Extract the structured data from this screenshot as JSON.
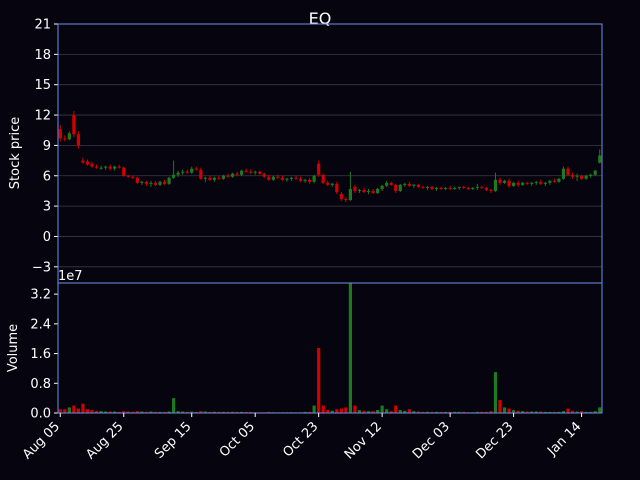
{
  "chart_data": {
    "type": "candlestick",
    "title": "EQ",
    "price_panel": {
      "ylabel": "Stock price",
      "ylim": [
        -4.6,
        21
      ],
      "yticks": [
        -3,
        0,
        3,
        6,
        9,
        12,
        15,
        18,
        21
      ],
      "grid": true
    },
    "volume_panel": {
      "ylabel": "Volume",
      "offset_label": "1e7",
      "ylim": [
        0,
        3.5
      ],
      "yticks": [
        "0.0",
        "0.8",
        "1.6",
        "2.4",
        "3.2"
      ],
      "unit_multiplier": 10000000
    },
    "xticks": [
      {
        "label": "Aug 05",
        "index": 0
      },
      {
        "label": "Aug 25",
        "index": 14
      },
      {
        "label": "Sep 15",
        "index": 29
      },
      {
        "label": "Oct 05",
        "index": 43
      },
      {
        "label": "Oct 23",
        "index": 57
      },
      {
        "label": "Nov 12",
        "index": 71
      },
      {
        "label": "Dec 03",
        "index": 86
      },
      {
        "label": "Dec 23",
        "index": 100
      },
      {
        "label": "Jan 14",
        "index": 115
      }
    ],
    "colors": {
      "up": "#1f7a1f",
      "down": "#d40000",
      "frame": "#6f8fe8",
      "grid": "#3a3a4a",
      "background": "#06040e"
    },
    "candles": [
      [
        10.6,
        11.0,
        9.4,
        9.7,
        0.1
      ],
      [
        9.7,
        10.0,
        9.4,
        9.6,
        0.1
      ],
      [
        9.6,
        10.4,
        9.5,
        10.2,
        0.15
      ],
      [
        12.0,
        12.4,
        9.8,
        10.1,
        0.2
      ],
      [
        10.1,
        10.4,
        8.7,
        9.0,
        0.12
      ],
      [
        7.5,
        7.8,
        7.2,
        7.3,
        0.25
      ],
      [
        7.4,
        7.6,
        7.0,
        7.1,
        0.1
      ],
      [
        7.2,
        7.4,
        6.8,
        6.9,
        0.08
      ],
      [
        6.9,
        7.1,
        6.7,
        6.8,
        0.06
      ],
      [
        6.8,
        7.0,
        6.6,
        6.8,
        0.05
      ],
      [
        6.8,
        7.0,
        6.6,
        6.9,
        0.04
      ],
      [
        6.9,
        7.1,
        6.5,
        6.7,
        0.04
      ],
      [
        6.7,
        7.0,
        6.5,
        6.9,
        0.04
      ],
      [
        6.9,
        7.1,
        6.7,
        6.8,
        0.03
      ],
      [
        6.8,
        6.9,
        5.9,
        6.0,
        0.05
      ],
      [
        6.0,
        6.1,
        5.8,
        5.9,
        0.04
      ],
      [
        5.9,
        6.0,
        5.7,
        5.8,
        0.03
      ],
      [
        5.8,
        5.9,
        5.2,
        5.3,
        0.05
      ],
      [
        5.3,
        5.5,
        5.1,
        5.4,
        0.04
      ],
      [
        5.4,
        5.5,
        5.0,
        5.2,
        0.03
      ],
      [
        5.2,
        5.5,
        4.9,
        5.3,
        0.04
      ],
      [
        5.3,
        5.5,
        5.0,
        5.1,
        0.03
      ],
      [
        5.1,
        5.5,
        5.0,
        5.4,
        0.03
      ],
      [
        5.4,
        5.6,
        5.1,
        5.2,
        0.03
      ],
      [
        5.2,
        5.9,
        5.1,
        5.8,
        0.04
      ],
      [
        5.8,
        7.5,
        5.7,
        6.1,
        0.4
      ],
      [
        6.1,
        6.5,
        5.9,
        6.3,
        0.05
      ],
      [
        6.3,
        6.6,
        6.1,
        6.4,
        0.04
      ],
      [
        6.4,
        6.6,
        6.2,
        6.3,
        0.03
      ],
      [
        6.3,
        6.9,
        6.2,
        6.7,
        0.04
      ],
      [
        6.7,
        6.9,
        6.5,
        6.6,
        0.03
      ],
      [
        6.6,
        6.8,
        5.6,
        5.7,
        0.05
      ],
      [
        5.7,
        5.9,
        5.4,
        5.8,
        0.04
      ],
      [
        5.8,
        6.0,
        5.5,
        5.6,
        0.03
      ],
      [
        5.6,
        5.9,
        5.4,
        5.8,
        0.03
      ],
      [
        5.8,
        6.0,
        5.6,
        5.7,
        0.03
      ],
      [
        5.7,
        6.1,
        5.6,
        6.0,
        0.03
      ],
      [
        6.0,
        6.2,
        5.8,
        5.9,
        0.03
      ],
      [
        5.9,
        6.3,
        5.8,
        6.2,
        0.03
      ],
      [
        6.2,
        6.4,
        6.0,
        6.1,
        0.03
      ],
      [
        6.1,
        6.6,
        6.0,
        6.5,
        0.03
      ],
      [
        6.5,
        6.7,
        6.3,
        6.4,
        0.03
      ],
      [
        6.4,
        6.6,
        6.2,
        6.3,
        0.03
      ],
      [
        6.3,
        6.5,
        6.1,
        6.4,
        0.02
      ],
      [
        6.4,
        6.5,
        6.1,
        6.2,
        0.02
      ],
      [
        6.2,
        6.3,
        5.8,
        5.9,
        0.02
      ],
      [
        5.9,
        6.1,
        5.5,
        5.6,
        0.03
      ],
      [
        5.6,
        6.0,
        5.5,
        5.9,
        0.02
      ],
      [
        5.9,
        6.1,
        5.7,
        5.8,
        0.02
      ],
      [
        5.8,
        6.0,
        5.5,
        5.6,
        0.02
      ],
      [
        5.6,
        5.8,
        5.4,
        5.7,
        0.02
      ],
      [
        5.7,
        5.9,
        5.5,
        5.8,
        0.02
      ],
      [
        5.8,
        6.0,
        5.6,
        5.7,
        0.02
      ],
      [
        5.7,
        5.9,
        5.4,
        5.5,
        0.02
      ],
      [
        5.5,
        5.7,
        5.3,
        5.6,
        0.03
      ],
      [
        5.6,
        5.8,
        5.2,
        5.4,
        0.03
      ],
      [
        5.4,
        6.1,
        5.3,
        6.0,
        0.2
      ],
      [
        7.2,
        7.5,
        5.9,
        6.1,
        1.75
      ],
      [
        6.1,
        6.2,
        5.2,
        5.3,
        0.2
      ],
      [
        5.3,
        5.5,
        5.0,
        5.1,
        0.08
      ],
      [
        5.1,
        5.3,
        4.9,
        5.2,
        0.06
      ],
      [
        5.2,
        5.4,
        4.2,
        4.4,
        0.1
      ],
      [
        4.2,
        4.4,
        3.5,
        3.7,
        0.12
      ],
      [
        3.7,
        3.9,
        3.4,
        3.6,
        0.15
      ],
      [
        3.6,
        6.4,
        3.5,
        4.7,
        3.6
      ],
      [
        4.9,
        5.1,
        4.3,
        4.5,
        0.2
      ],
      [
        4.5,
        4.7,
        4.3,
        4.6,
        0.08
      ],
      [
        4.6,
        4.8,
        4.3,
        4.4,
        0.06
      ],
      [
        4.4,
        4.7,
        4.2,
        4.5,
        0.05
      ],
      [
        4.5,
        4.7,
        4.2,
        4.3,
        0.05
      ],
      [
        4.3,
        4.8,
        4.2,
        4.7,
        0.08
      ],
      [
        4.7,
        5.1,
        4.5,
        5.0,
        0.2
      ],
      [
        5.0,
        5.5,
        4.9,
        5.3,
        0.1
      ],
      [
        5.3,
        5.4,
        5.0,
        5.1,
        0.05
      ],
      [
        5.1,
        5.2,
        4.3,
        4.5,
        0.2
      ],
      [
        4.5,
        5.2,
        4.4,
        5.1,
        0.08
      ],
      [
        5.1,
        5.3,
        4.9,
        5.2,
        0.06
      ],
      [
        5.2,
        5.4,
        4.9,
        5.0,
        0.1
      ],
      [
        5.0,
        5.2,
        4.8,
        5.1,
        0.05
      ],
      [
        5.1,
        5.2,
        4.8,
        4.9,
        0.04
      ],
      [
        4.9,
        5.0,
        4.7,
        4.8,
        0.03
      ],
      [
        4.8,
        5.0,
        4.6,
        4.9,
        0.03
      ],
      [
        4.9,
        5.0,
        4.6,
        4.7,
        0.03
      ],
      [
        4.7,
        4.9,
        4.5,
        4.8,
        0.03
      ],
      [
        4.8,
        4.9,
        4.6,
        4.7,
        0.03
      ],
      [
        4.7,
        4.9,
        4.6,
        4.8,
        0.03
      ],
      [
        4.8,
        5.0,
        4.6,
        4.7,
        0.03
      ],
      [
        4.7,
        4.9,
        4.6,
        4.8,
        0.03
      ],
      [
        4.8,
        4.9,
        4.6,
        4.9,
        0.03
      ],
      [
        4.9,
        5.0,
        4.7,
        4.8,
        0.03
      ],
      [
        4.8,
        4.9,
        4.6,
        4.7,
        0.02
      ],
      [
        4.7,
        4.9,
        4.6,
        4.8,
        0.02
      ],
      [
        4.8,
        5.2,
        4.6,
        4.9,
        0.03
      ],
      [
        4.9,
        5.0,
        4.7,
        4.8,
        0.03
      ],
      [
        4.8,
        4.9,
        4.5,
        4.6,
        0.03
      ],
      [
        4.6,
        4.7,
        4.3,
        4.5,
        0.05
      ],
      [
        4.5,
        6.3,
        4.4,
        5.6,
        1.1
      ],
      [
        5.6,
        5.8,
        5.1,
        5.3,
        0.35
      ],
      [
        5.3,
        5.6,
        5.2,
        5.5,
        0.15
      ],
      [
        5.5,
        5.7,
        4.8,
        5.0,
        0.12
      ],
      [
        5.0,
        5.4,
        4.9,
        5.3,
        0.08
      ],
      [
        5.3,
        5.5,
        4.9,
        5.1,
        0.06
      ],
      [
        5.1,
        5.4,
        5.0,
        5.3,
        0.05
      ],
      [
        5.3,
        5.4,
        5.1,
        5.2,
        0.04
      ],
      [
        5.2,
        5.4,
        5.0,
        5.3,
        0.04
      ],
      [
        5.3,
        5.5,
        5.1,
        5.4,
        0.04
      ],
      [
        5.4,
        5.6,
        5.1,
        5.2,
        0.04
      ],
      [
        5.2,
        5.4,
        5.0,
        5.3,
        0.03
      ],
      [
        5.3,
        5.6,
        5.1,
        5.5,
        0.03
      ],
      [
        5.5,
        5.7,
        5.3,
        5.4,
        0.03
      ],
      [
        5.4,
        5.8,
        5.3,
        5.7,
        0.03
      ],
      [
        5.7,
        6.9,
        5.6,
        6.7,
        0.05
      ],
      [
        6.7,
        6.9,
        6.0,
        6.1,
        0.12
      ],
      [
        6.1,
        6.3,
        5.7,
        5.9,
        0.06
      ],
      [
        5.9,
        6.2,
        5.5,
        6.0,
        0.04
      ],
      [
        6.0,
        6.1,
        5.6,
        5.7,
        0.05
      ],
      [
        5.7,
        6.1,
        5.6,
        6.0,
        0.03
      ],
      [
        6.0,
        6.2,
        5.8,
        6.1,
        0.03
      ],
      [
        6.1,
        6.6,
        6.0,
        6.5,
        0.05
      ],
      [
        7.3,
        8.6,
        7.2,
        8.0,
        0.15
      ]
    ]
  }
}
